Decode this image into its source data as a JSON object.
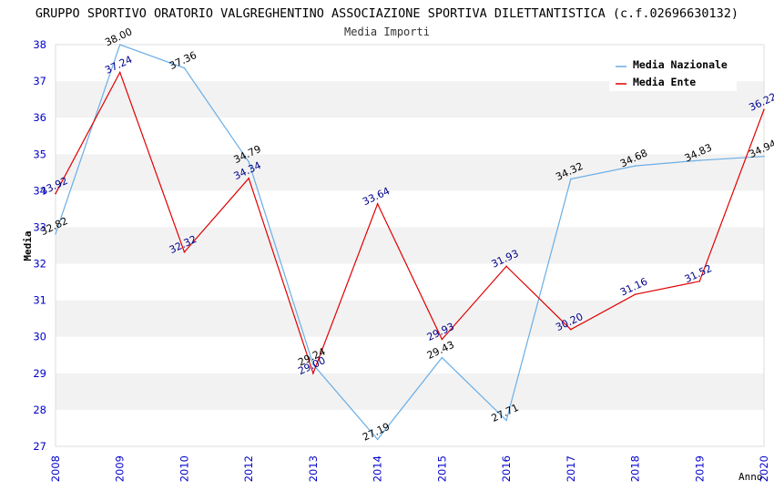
{
  "chart_data": {
    "type": "line",
    "title": "GRUPPO SPORTIVO ORATORIO VALGREGHENTINO ASSOCIAZIONE SPORTIVA DILETTANTISTICA (c.f.02696630132)",
    "subtitle": "Media Importi",
    "xlabel": "Anno",
    "ylabel": "Media",
    "categories": [
      "2008",
      "2009",
      "2010",
      "2012",
      "2013",
      "2014",
      "2015",
      "2016",
      "2017",
      "2018",
      "2019",
      "2020"
    ],
    "ylim": [
      27,
      38
    ],
    "yticks": [
      "27",
      "28",
      "29",
      "30",
      "31",
      "32",
      "33",
      "34",
      "35",
      "36",
      "37",
      "38"
    ],
    "grid": "horizontal alternating bands",
    "legend_position": "top-right",
    "series": [
      {
        "name": "Media Nazionale",
        "color": "#6aaee6",
        "label_color": "#000000",
        "values": [
          32.82,
          38.0,
          37.36,
          34.79,
          29.24,
          27.19,
          29.43,
          27.71,
          34.32,
          34.68,
          34.83,
          34.94
        ],
        "labels": [
          "32.82",
          "38.00",
          "37.36",
          "34.79",
          "29.24",
          "27.19",
          "29.43",
          "27.71",
          "34.32",
          "34.68",
          "34.83",
          "34.94"
        ]
      },
      {
        "name": "Media Ente",
        "color": "#e00000",
        "label_color": "#00008b",
        "values": [
          33.92,
          37.24,
          32.32,
          34.34,
          29.0,
          33.64,
          29.93,
          31.93,
          30.2,
          31.16,
          31.52,
          36.22
        ],
        "labels": [
          "33.92",
          "37.24",
          "32.32",
          "34.34",
          "29.00",
          "33.64",
          "29.93",
          "31.93",
          "30.20",
          "31.16",
          "31.52",
          "36.22"
        ]
      }
    ]
  }
}
